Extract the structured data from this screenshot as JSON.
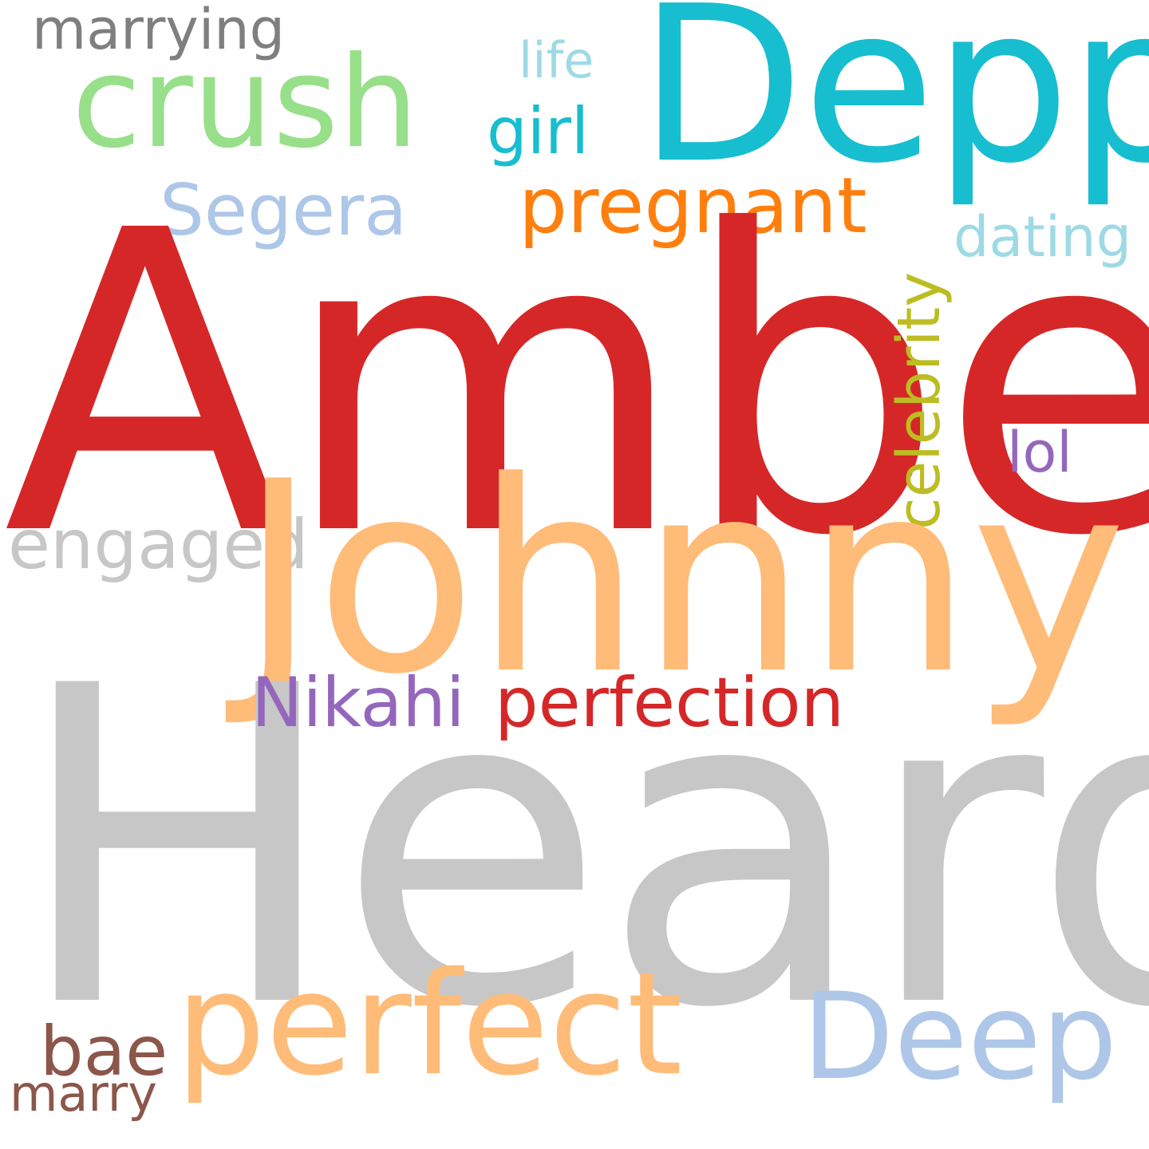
{
  "words": {
    "amber": {
      "text": "Amber",
      "color": "#d62728"
    },
    "heard": {
      "text": "Heard",
      "color": "#c7c7c7"
    },
    "johnny": {
      "text": "Johnny",
      "color": "#ffbb78"
    },
    "depp": {
      "text": "Depp",
      "color": "#17becf"
    },
    "crush": {
      "text": "crush",
      "color": "#98df8a"
    },
    "perfect": {
      "text": "perfect",
      "color": "#ffbb78"
    },
    "deep": {
      "text": "Deep",
      "color": "#aec7e8"
    },
    "pregnant": {
      "text": "pregnant",
      "color": "#ff7f0e"
    },
    "segera": {
      "text": "Segera",
      "color": "#aec7e8"
    },
    "engaged": {
      "text": "engaged",
      "color": "#c7c7c7"
    },
    "nikahi": {
      "text": "Nikahi",
      "color": "#9467bd"
    },
    "perfection": {
      "text": "perfection",
      "color": "#d62728"
    },
    "marrying": {
      "text": "marrying",
      "color": "#7f7f7f"
    },
    "girl": {
      "text": "girl",
      "color": "#17becf"
    },
    "life": {
      "text": "life",
      "color": "#9edae5"
    },
    "dating": {
      "text": "dating",
      "color": "#9edae5"
    },
    "lol": {
      "text": "lol",
      "color": "#9467bd"
    },
    "celebrity": {
      "text": "celebrity",
      "color": "#bcbd22"
    },
    "bae": {
      "text": "bae",
      "color": "#8c564b"
    },
    "marry": {
      "text": "marry",
      "color": "#8c564b"
    }
  }
}
